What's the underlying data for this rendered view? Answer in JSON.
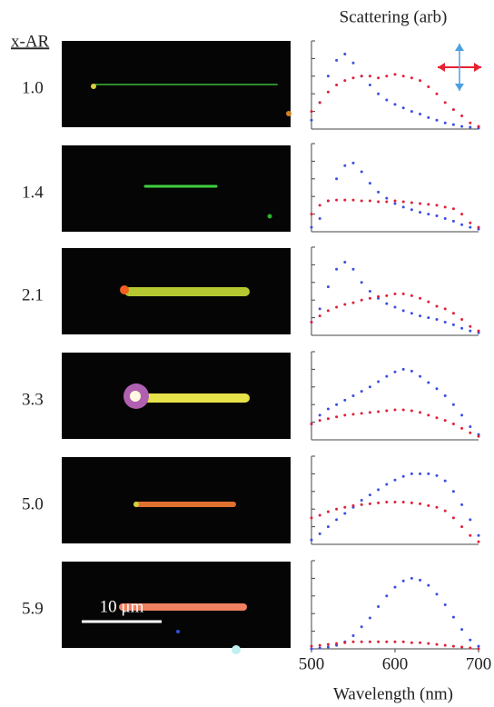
{
  "figure": {
    "column_label": "x-AR",
    "title": "Scattering (arb)",
    "xlabel": "Wavelength (nm)",
    "scale_bar": "10 μm"
  },
  "chart_data": [
    {
      "type": "scatter",
      "label": "1.0",
      "x": [
        500,
        510,
        520,
        530,
        540,
        550,
        560,
        570,
        580,
        590,
        600,
        610,
        620,
        630,
        640,
        650,
        660,
        670,
        680,
        690,
        700
      ],
      "xlim": [
        500,
        700
      ],
      "ylim": [
        0,
        1
      ],
      "yticks": [
        0,
        0.2,
        0.4,
        0.6,
        0.8,
        1
      ],
      "series": [
        {
          "color": "#3a4fe0",
          "values": [
            0.1,
            0.3,
            0.6,
            0.78,
            0.85,
            0.75,
            0.6,
            0.5,
            0.4,
            0.33,
            0.28,
            0.24,
            0.2,
            0.17,
            0.13,
            0.1,
            0.07,
            0.05,
            0.03,
            0.02,
            0.01
          ]
        },
        {
          "color": "#e0203a",
          "values": [
            0.2,
            0.3,
            0.42,
            0.5,
            0.55,
            0.58,
            0.6,
            0.6,
            0.58,
            0.6,
            0.62,
            0.6,
            0.58,
            0.55,
            0.48,
            0.4,
            0.3,
            0.22,
            0.15,
            0.07,
            0.03
          ]
        }
      ]
    },
    {
      "type": "scatter",
      "label": "1.4",
      "x": [
        500,
        510,
        520,
        530,
        540,
        550,
        560,
        570,
        580,
        590,
        600,
        610,
        620,
        630,
        640,
        650,
        660,
        670,
        680,
        690,
        700
      ],
      "xlim": [
        500,
        700
      ],
      "ylim": [
        0,
        1
      ],
      "yticks": [
        0,
        0.2,
        0.4,
        0.6,
        0.8,
        1
      ],
      "series": [
        {
          "color": "#3a4fe0",
          "values": [
            0.05,
            0.15,
            0.35,
            0.6,
            0.75,
            0.78,
            0.68,
            0.55,
            0.45,
            0.38,
            0.32,
            0.28,
            0.25,
            0.22,
            0.2,
            0.18,
            0.15,
            0.12,
            0.08,
            0.05,
            0.03
          ]
        },
        {
          "color": "#e0203a",
          "values": [
            0.2,
            0.3,
            0.35,
            0.36,
            0.36,
            0.36,
            0.35,
            0.35,
            0.34,
            0.34,
            0.35,
            0.34,
            0.33,
            0.32,
            0.31,
            0.3,
            0.28,
            0.26,
            0.2,
            0.1,
            0.05
          ]
        }
      ]
    },
    {
      "type": "scatter",
      "label": "2.1",
      "x": [
        500,
        510,
        520,
        530,
        540,
        550,
        560,
        570,
        580,
        590,
        600,
        610,
        620,
        630,
        640,
        650,
        660,
        670,
        680,
        690,
        700
      ],
      "xlim": [
        500,
        700
      ],
      "ylim": [
        0,
        1
      ],
      "yticks": [
        0,
        0.2,
        0.4,
        0.6,
        0.8,
        1
      ],
      "series": [
        {
          "color": "#3a4fe0",
          "values": [
            0.15,
            0.3,
            0.55,
            0.75,
            0.83,
            0.75,
            0.6,
            0.5,
            0.42,
            0.36,
            0.32,
            0.28,
            0.25,
            0.22,
            0.2,
            0.18,
            0.15,
            0.12,
            0.08,
            0.05,
            0.03
          ]
        },
        {
          "color": "#e0203a",
          "values": [
            0.15,
            0.22,
            0.28,
            0.32,
            0.35,
            0.37,
            0.4,
            0.42,
            0.44,
            0.45,
            0.47,
            0.47,
            0.45,
            0.42,
            0.38,
            0.33,
            0.3,
            0.25,
            0.18,
            0.1,
            0.05
          ]
        }
      ]
    },
    {
      "type": "scatter",
      "label": "3.3",
      "x": [
        500,
        510,
        520,
        530,
        540,
        550,
        560,
        570,
        580,
        590,
        600,
        610,
        620,
        630,
        640,
        650,
        660,
        670,
        680,
        690,
        700
      ],
      "xlim": [
        500,
        700
      ],
      "ylim": [
        0,
        1
      ],
      "yticks": [
        0,
        0.2,
        0.4,
        0.6,
        0.8,
        1
      ],
      "series": [
        {
          "color": "#3a4fe0",
          "values": [
            0.18,
            0.28,
            0.35,
            0.4,
            0.45,
            0.5,
            0.55,
            0.6,
            0.66,
            0.72,
            0.77,
            0.8,
            0.78,
            0.72,
            0.65,
            0.58,
            0.5,
            0.4,
            0.28,
            0.15,
            0.06
          ]
        },
        {
          "color": "#e0203a",
          "values": [
            0.18,
            0.22,
            0.24,
            0.26,
            0.28,
            0.29,
            0.3,
            0.31,
            0.32,
            0.33,
            0.34,
            0.34,
            0.33,
            0.31,
            0.28,
            0.25,
            0.22,
            0.18,
            0.13,
            0.08,
            0.04
          ]
        }
      ]
    },
    {
      "type": "scatter",
      "label": "5.0",
      "x": [
        500,
        510,
        520,
        530,
        540,
        550,
        560,
        570,
        580,
        590,
        600,
        610,
        620,
        630,
        640,
        650,
        660,
        670,
        680,
        690,
        700
      ],
      "xlim": [
        500,
        700
      ],
      "ylim": [
        0,
        1
      ],
      "yticks": [
        0,
        0.2,
        0.4,
        0.6,
        0.8,
        1
      ],
      "series": [
        {
          "color": "#3a4fe0",
          "values": [
            0.05,
            0.12,
            0.2,
            0.28,
            0.35,
            0.42,
            0.5,
            0.56,
            0.62,
            0.68,
            0.73,
            0.77,
            0.8,
            0.8,
            0.8,
            0.78,
            0.72,
            0.6,
            0.45,
            0.28,
            0.1
          ]
        },
        {
          "color": "#e0203a",
          "values": [
            0.3,
            0.33,
            0.37,
            0.4,
            0.42,
            0.44,
            0.45,
            0.46,
            0.47,
            0.48,
            0.48,
            0.48,
            0.47,
            0.46,
            0.44,
            0.42,
            0.38,
            0.3,
            0.2,
            0.1,
            0.03
          ]
        }
      ]
    },
    {
      "type": "scatter",
      "label": "5.9",
      "x": [
        500,
        510,
        520,
        530,
        540,
        550,
        560,
        570,
        580,
        590,
        600,
        610,
        620,
        630,
        640,
        650,
        660,
        670,
        680,
        690,
        700
      ],
      "xlim": [
        500,
        700
      ],
      "ylim": [
        0,
        1
      ],
      "yticks": [
        0,
        0.2,
        0.4,
        0.6,
        0.8,
        1
      ],
      "xticks": [
        500,
        600,
        700
      ],
      "series": [
        {
          "color": "#3a4fe0",
          "values": [
            0,
            0.01,
            0.02,
            0.04,
            0.08,
            0.15,
            0.25,
            0.35,
            0.48,
            0.6,
            0.7,
            0.77,
            0.8,
            0.78,
            0.72,
            0.62,
            0.5,
            0.36,
            0.22,
            0.1,
            0.03
          ]
        },
        {
          "color": "#e0203a",
          "values": [
            0.03,
            0.04,
            0.05,
            0.06,
            0.07,
            0.08,
            0.08,
            0.08,
            0.08,
            0.08,
            0.08,
            0.08,
            0.07,
            0.07,
            0.06,
            0.05,
            0.04,
            0.03,
            0.02,
            0.01,
            0
          ]
        }
      ]
    }
  ]
}
